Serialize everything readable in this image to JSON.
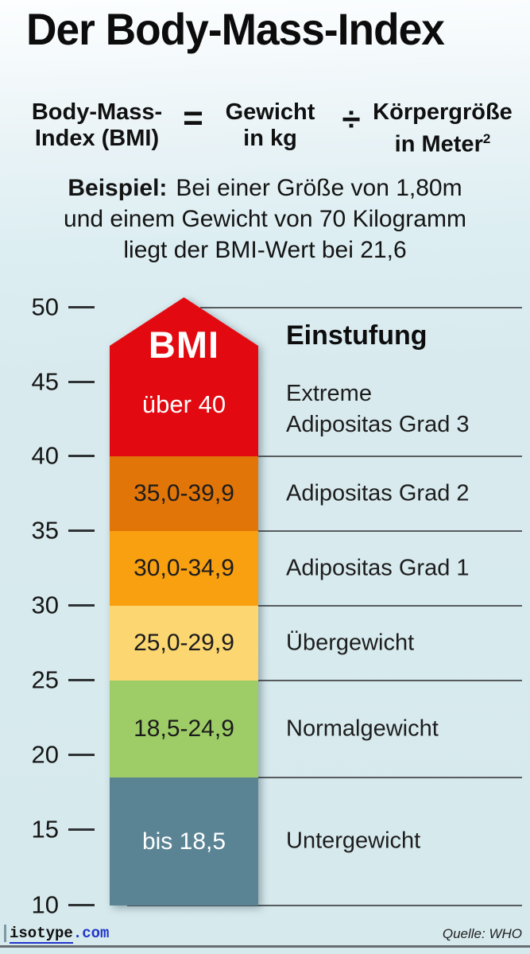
{
  "title": "Der Body-Mass-Index",
  "formula": {
    "lhs_line1": "Body-Mass-",
    "lhs_line2": "Index (BMI)",
    "equals": "=",
    "weight_line1": "Gewicht",
    "weight_line2": "in kg",
    "divide": "÷",
    "height_line1": "Körpergröße",
    "height_line2": "in Meter",
    "height_sup": "2"
  },
  "example": {
    "label": "Beispiel:",
    "line1": "Bei einer Größe von 1,80m",
    "line2": "und einem Gewicht von 70 Kilogramm",
    "line3": "liegt der BMI-Wert bei 21,6"
  },
  "footer": {
    "brand_name": "isotype",
    "brand_domain": ".com",
    "source": "Quelle: WHO"
  },
  "chart_data": {
    "type": "bar",
    "title": "BMI",
    "classification_header": "Einstufung",
    "orientation": "vertical-scale",
    "axis": {
      "ticks": [
        "50",
        "45",
        "40",
        "35",
        "30",
        "25",
        "20",
        "15",
        "10"
      ],
      "range": [
        10,
        50
      ],
      "gridlines_at": [
        50,
        40,
        35,
        30,
        25,
        18.5,
        10
      ]
    },
    "bands": [
      {
        "range_label": "über 40",
        "from": 40,
        "to": 50,
        "classification": "Extreme Adipositas Grad 3",
        "classification_lines": [
          "Extreme",
          "Adipositas Grad 3"
        ],
        "color": "#e20a10",
        "text_color": "#ffffff"
      },
      {
        "range_label": "35,0-39,9",
        "from": 35,
        "to": 40,
        "classification": "Adipositas Grad 2",
        "color": "#e27507",
        "text_color": "#1c1c1c"
      },
      {
        "range_label": "30,0-34,9",
        "from": 30,
        "to": 35,
        "classification": "Adipositas Grad 1",
        "color": "#f9a011",
        "text_color": "#1c1c1c"
      },
      {
        "range_label": "25,0-29,9",
        "from": 25,
        "to": 30,
        "classification": "Übergewicht",
        "color": "#fbd671",
        "text_color": "#1c1c1c"
      },
      {
        "range_label": "18,5-24,9",
        "from": 18.5,
        "to": 25,
        "classification": "Normalgewicht",
        "color": "#9ecd67",
        "text_color": "#1c1c1c"
      },
      {
        "range_label": "bis 18,5",
        "from": 10,
        "to": 18.5,
        "classification": "Untergewicht",
        "color": "#5a8494",
        "text_color": "#ffffff"
      }
    ]
  }
}
